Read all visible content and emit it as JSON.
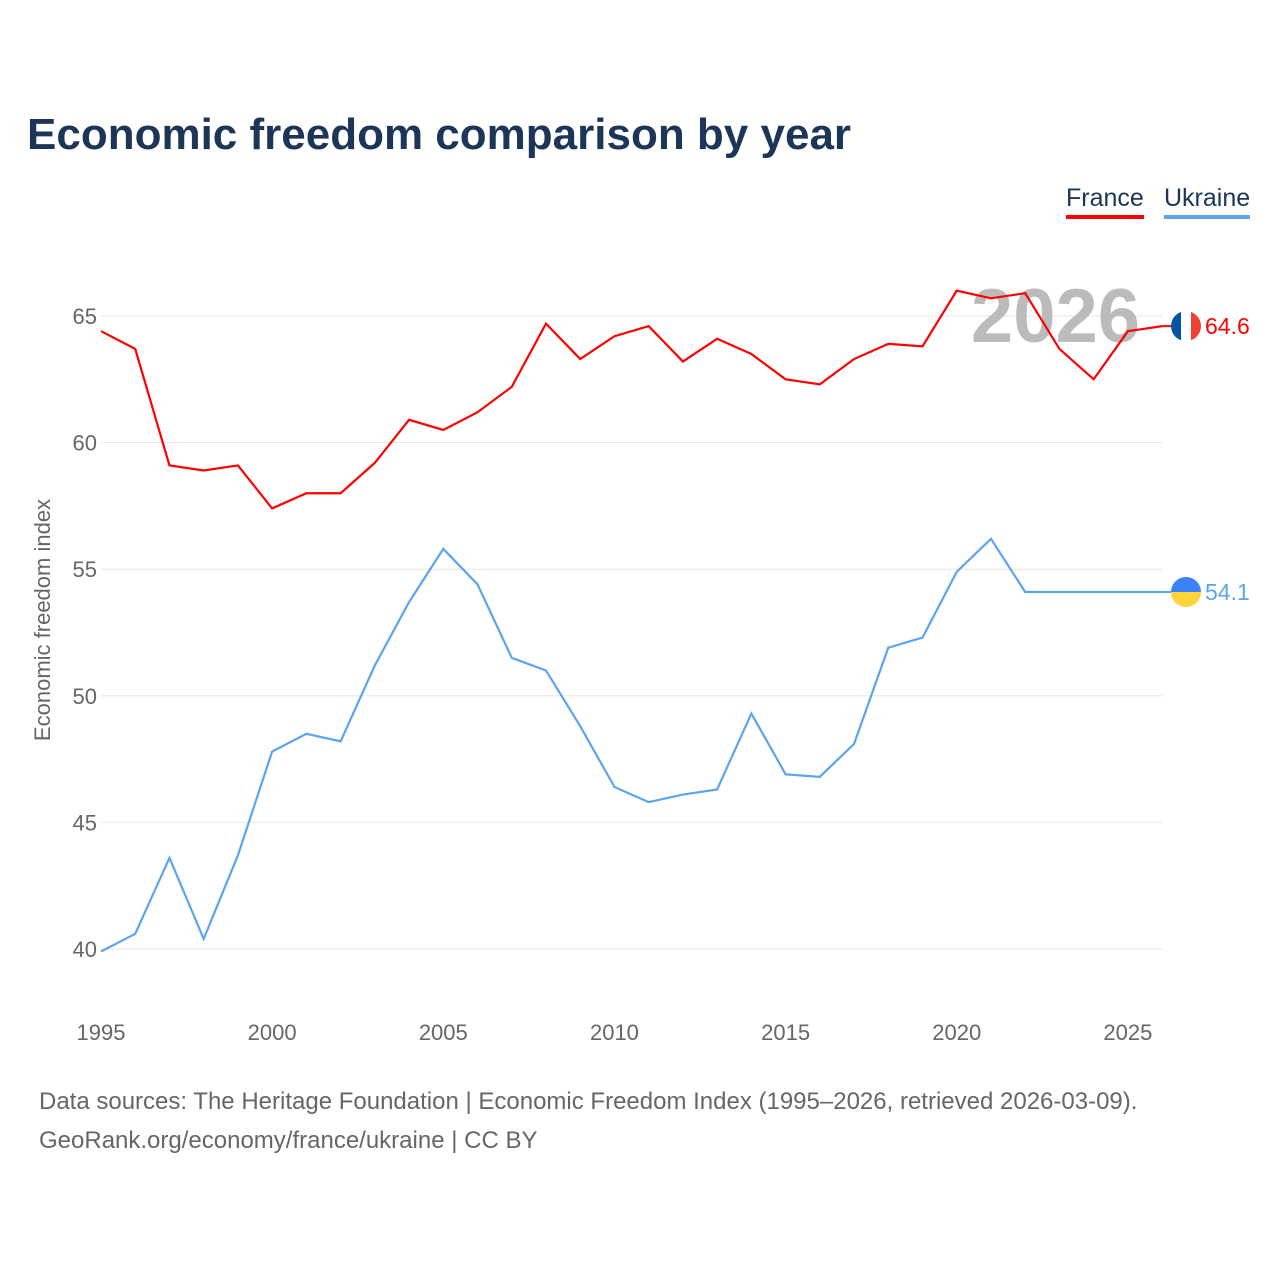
{
  "chart_data": {
    "type": "line",
    "title": "Economic freedom comparison by year",
    "xlabel": "",
    "ylabel": "Economic freedom index",
    "xlim": [
      1995,
      2026
    ],
    "ylim": [
      38,
      67
    ],
    "x_ticks": [
      "1995",
      "2000",
      "2005",
      "2010",
      "2015",
      "2020",
      "2025"
    ],
    "y_ticks": [
      "40",
      "45",
      "50",
      "55",
      "60",
      "65"
    ],
    "grid": true,
    "legend_position": "top-right",
    "year_watermark": "2026",
    "x": [
      1995,
      1996,
      1997,
      1998,
      1999,
      2000,
      2001,
      2002,
      2003,
      2004,
      2005,
      2006,
      2007,
      2008,
      2009,
      2010,
      2011,
      2012,
      2013,
      2014,
      2015,
      2016,
      2017,
      2018,
      2019,
      2020,
      2021,
      2022,
      2023,
      2024,
      2025,
      2026
    ],
    "series": [
      {
        "name": "France",
        "color": "#ff0000",
        "end_label": "64.6",
        "values": [
          64.4,
          63.7,
          59.1,
          58.9,
          59.1,
          57.4,
          58.0,
          58.0,
          59.2,
          60.9,
          60.5,
          61.2,
          62.2,
          64.7,
          63.3,
          64.2,
          64.6,
          63.2,
          64.1,
          63.5,
          62.5,
          62.3,
          63.3,
          63.9,
          63.8,
          66.0,
          65.7,
          65.9,
          63.7,
          62.5,
          64.4,
          64.6
        ]
      },
      {
        "name": "Ukraine",
        "color": "#5ba4ef",
        "end_label": "54.1",
        "values": [
          39.9,
          40.6,
          43.6,
          40.4,
          43.7,
          47.8,
          48.5,
          48.2,
          51.2,
          53.7,
          55.8,
          54.4,
          51.5,
          51.0,
          48.8,
          46.4,
          45.8,
          46.1,
          46.3,
          49.3,
          46.9,
          46.8,
          48.1,
          51.9,
          52.3,
          54.9,
          56.2,
          54.1,
          54.1,
          54.1,
          54.1,
          54.1
        ]
      }
    ]
  },
  "footer": {
    "line1": "Data sources: The Heritage Foundation | Economic Freedom Index (1995–2026, retrieved 2026-03-09).",
    "line2": "GeoRank.org/economy/france/ukraine | CC BY"
  }
}
